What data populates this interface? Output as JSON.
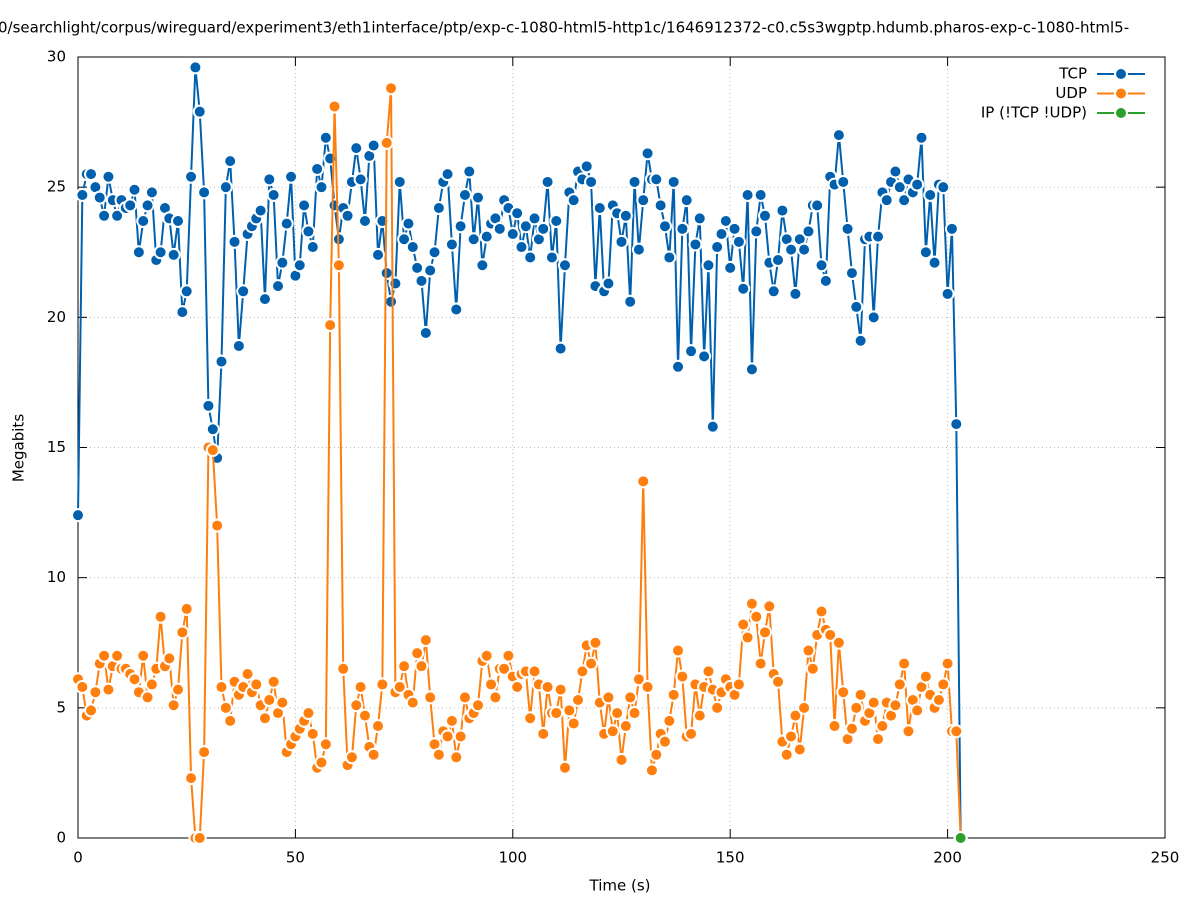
{
  "chart_data": {
    "type": "line",
    "title": "0/searchlight/corpus/wireguard/experiment3/eth1interface/ptp/exp-c-1080-html5-http1c/1646912372-c0.c5s3wgptp.hdumb.pharos-exp-c-1080-html5-",
    "xlabel": "Time (s)",
    "ylabel": "Megabits",
    "xlim": [
      0,
      250
    ],
    "xticks": [
      0,
      50,
      100,
      150,
      200,
      250
    ],
    "ylim": [
      0,
      30
    ],
    "yticks": [
      0,
      5,
      10,
      15,
      20,
      25,
      30
    ],
    "grid": true,
    "legend": "top-right",
    "x": [
      0,
      1,
      2,
      3,
      4,
      5,
      6,
      7,
      8,
      9,
      10,
      11,
      12,
      13,
      14,
      15,
      16,
      17,
      18,
      19,
      20,
      21,
      22,
      23,
      24,
      25,
      26,
      27,
      28,
      29,
      30,
      31,
      32,
      33,
      34,
      35,
      36,
      37,
      38,
      39,
      40,
      41,
      42,
      43,
      44,
      45,
      46,
      47,
      48,
      49,
      50,
      51,
      52,
      53,
      54,
      55,
      56,
      57,
      58,
      59,
      60,
      61,
      62,
      63,
      64,
      65,
      66,
      67,
      68,
      69,
      70,
      71,
      72,
      73,
      74,
      75,
      76,
      77,
      78,
      79,
      80,
      81,
      82,
      83,
      84,
      85,
      86,
      87,
      88,
      89,
      90,
      91,
      92,
      93,
      94,
      95,
      96,
      97,
      98,
      99,
      100,
      101,
      102,
      103,
      104,
      105,
      106,
      107,
      108,
      109,
      110,
      111,
      112,
      113,
      114,
      115,
      116,
      117,
      118,
      119,
      120,
      121,
      122,
      123,
      124,
      125,
      126,
      127,
      128,
      129,
      130,
      131,
      132,
      133,
      134,
      135,
      136,
      137,
      138,
      139,
      140,
      141,
      142,
      143,
      144,
      145,
      146,
      147,
      148,
      149,
      150,
      151,
      152,
      153,
      154,
      155,
      156,
      157,
      158,
      159,
      160,
      161,
      162,
      163,
      164,
      165,
      166,
      167,
      168,
      169,
      170,
      171,
      172,
      173,
      174,
      175,
      176,
      177,
      178,
      179,
      180,
      181,
      182,
      183,
      184,
      185,
      186,
      187,
      188,
      189,
      190,
      191,
      192,
      193,
      194,
      195,
      196,
      197,
      198,
      199,
      200,
      201,
      202,
      203
    ],
    "series": [
      {
        "name": "TCP",
        "color": "#0060ad",
        "values": [
          12.4,
          24.7,
          25.5,
          25.5,
          25.0,
          24.6,
          23.9,
          25.4,
          24.5,
          23.9,
          24.5,
          24.2,
          24.3,
          24.9,
          22.5,
          23.7,
          24.3,
          24.8,
          22.2,
          22.5,
          24.2,
          23.8,
          22.4,
          23.7,
          20.2,
          21.0,
          25.4,
          29.6,
          27.9,
          24.8,
          16.6,
          15.7,
          14.6,
          18.3,
          25.0,
          26.0,
          22.9,
          18.9,
          21.0,
          23.2,
          23.5,
          23.8,
          24.1,
          20.7,
          25.3,
          24.7,
          21.2,
          22.1,
          23.6,
          25.4,
          21.6,
          22.0,
          24.3,
          23.3,
          22.7,
          25.7,
          25.0,
          26.9,
          26.1,
          24.3,
          23.0,
          24.2,
          23.9,
          25.2,
          26.5,
          25.3,
          23.7,
          26.2,
          26.6,
          22.4,
          23.7,
          21.7,
          20.6,
          21.3,
          25.2,
          23.0,
          23.6,
          22.7,
          21.9,
          21.4,
          19.4,
          21.8,
          22.5,
          24.2,
          25.2,
          25.5,
          22.8,
          20.3,
          23.5,
          24.7,
          25.6,
          23.0,
          24.6,
          22.0,
          23.1,
          23.6,
          23.8,
          23.4,
          24.5,
          24.2,
          23.2,
          24.0,
          22.7,
          23.5,
          22.3,
          23.8,
          23.0,
          23.4,
          25.2,
          22.3,
          23.7,
          18.8,
          22.0,
          24.8,
          24.5,
          25.6,
          25.3,
          25.8,
          25.2,
          21.2,
          24.2,
          21.0,
          21.3,
          24.3,
          24.0,
          22.9,
          23.9,
          20.6,
          25.2,
          22.6,
          24.5,
          26.3,
          25.3,
          25.3,
          24.3,
          23.5,
          22.3,
          25.2,
          18.1,
          23.4,
          24.5,
          18.7,
          22.8,
          23.8,
          18.5,
          22.0,
          15.8,
          22.7,
          23.2,
          23.7,
          21.9,
          23.4,
          22.9,
          21.1,
          24.7,
          18.0,
          23.3,
          24.7,
          23.9,
          22.1,
          21.0,
          22.2,
          24.1,
          23.0,
          22.6,
          20.9,
          23.0,
          22.6,
          23.3,
          24.3,
          24.3,
          22.0,
          21.4,
          25.4,
          25.1,
          27.0,
          25.2,
          23.4,
          21.7,
          20.4,
          19.1,
          23.0,
          23.1,
          20.0,
          23.1,
          24.8,
          24.5,
          25.2,
          25.6,
          25.0,
          24.5,
          25.3,
          24.8,
          25.1,
          26.9,
          22.5,
          24.7,
          22.1,
          25.1,
          25.0,
          20.9,
          23.4,
          15.9,
          0
        ]
      },
      {
        "name": "UDP",
        "color": "#ff7f0e",
        "values": [
          6.1,
          5.8,
          4.7,
          4.9,
          5.6,
          6.7,
          7.0,
          5.7,
          6.6,
          7.0,
          6.5,
          6.5,
          6.3,
          6.1,
          5.6,
          7.0,
          5.4,
          5.9,
          6.5,
          8.5,
          6.6,
          6.9,
          5.1,
          5.7,
          7.9,
          8.8,
          2.3,
          0,
          0,
          3.3,
          15.0,
          14.9,
          12.0,
          5.8,
          5.0,
          4.5,
          6.0,
          5.5,
          5.8,
          6.3,
          5.6,
          5.9,
          5.1,
          4.6,
          5.3,
          6.0,
          4.8,
          5.2,
          3.3,
          3.6,
          3.9,
          4.2,
          4.5,
          4.8,
          4.0,
          2.7,
          2.9,
          3.6,
          19.7,
          28.1,
          22.0,
          6.5,
          2.8,
          3.1,
          5.1,
          5.8,
          4.7,
          3.5,
          3.2,
          4.3,
          5.9,
          26.7,
          28.8,
          5.6,
          5.8,
          6.6,
          5.5,
          5.2,
          7.1,
          6.6,
          7.6,
          5.4,
          3.6,
          3.2,
          4.1,
          3.9,
          4.5,
          3.1,
          3.9,
          5.4,
          4.6,
          4.8,
          5.1,
          6.8,
          7.0,
          5.9,
          5.4,
          6.5,
          6.5,
          7.0,
          6.2,
          5.8,
          6.3,
          6.4,
          4.6,
          6.4,
          5.9,
          4.0,
          5.8,
          4.8,
          4.8,
          5.7,
          2.7,
          4.9,
          4.4,
          5.3,
          6.4,
          7.4,
          6.7,
          7.5,
          5.2,
          4.0,
          5.4,
          4.1,
          4.8,
          3.0,
          4.3,
          5.4,
          4.8,
          6.1,
          13.7,
          5.8,
          2.6,
          3.2,
          4.0,
          3.7,
          4.5,
          5.5,
          7.2,
          6.2,
          3.9,
          4.0,
          5.9,
          4.7,
          5.8,
          6.4,
          5.7,
          5.0,
          5.6,
          6.1,
          5.8,
          5.5,
          5.9,
          8.2,
          7.7,
          9.0,
          8.5,
          6.7,
          7.9,
          8.9,
          6.3,
          6.0,
          3.7,
          3.2,
          3.9,
          4.7,
          3.4,
          5.0,
          7.2,
          6.5,
          7.8,
          8.7,
          8.0,
          7.8,
          4.3,
          7.5,
          5.6,
          3.8,
          4.2,
          5.0,
          5.5,
          4.5,
          4.8,
          5.2,
          3.8,
          4.3,
          5.2,
          4.7,
          5.1,
          5.9,
          6.7,
          4.1,
          5.3,
          4.9,
          5.8,
          6.2,
          5.5,
          5.0,
          5.3,
          5.9,
          6.7,
          4.1,
          4.1,
          0
        ]
      },
      {
        "name": "IP (!TCP  !UDP)",
        "color": "#2ca02c",
        "x": [
          203
        ],
        "values": [
          0
        ]
      }
    ]
  }
}
